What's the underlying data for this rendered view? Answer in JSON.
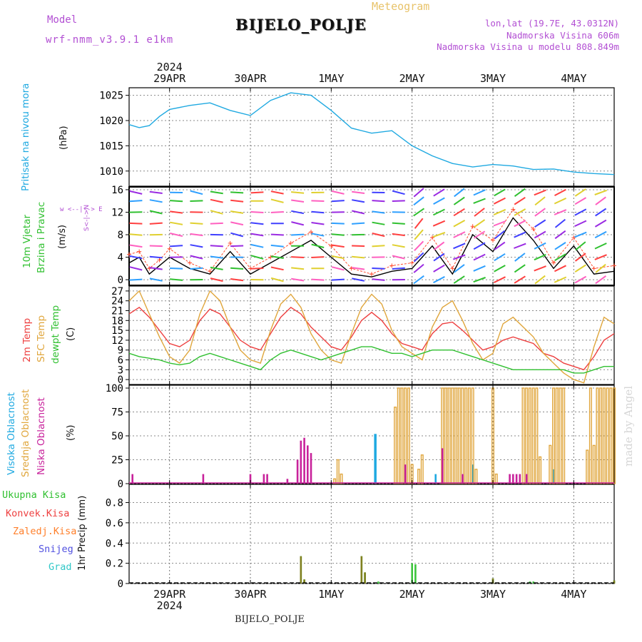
{
  "header": {
    "model_label": "Model",
    "model_name": "wrf-nmm_v3.9.1 e1km",
    "title": "BIJELO_POLJE",
    "meteogram": "Meteogram",
    "lonlat": "lon,lat (19.7E, 43.0312N)",
    "altitude": "Nadmorska Visina 606m",
    "model_altitude": "Nadmorska Visina u modelu 808.849m"
  },
  "footer": {
    "station": "BIJELO_POLJE"
  },
  "watermark": "made by Angel",
  "colors": {
    "pressure": "#1fa9e1",
    "temp2m": "#ee4040",
    "sfc": "#e0a63c",
    "dewpt": "#30c030",
    "high_cloud": "#1fa9e1",
    "mid_cloud": "#e0a63c",
    "low_cloud": "#c8229b",
    "total_precip": "#3cc43c",
    "conv_precip": "#ee4040",
    "frozen": "#ff7f2a",
    "snow": "#5050e0",
    "hail": "#31c8c8",
    "wind_speed": "#000000",
    "gust": "#ff4d30"
  },
  "axes": {
    "top_year": "2024",
    "bottom_year": "2024",
    "dates": [
      "29APR",
      "30APR",
      "1MAY",
      "2MAY",
      "3MAY",
      "4MAY"
    ]
  },
  "panel_labels": {
    "pressure": "Pritisak na nivou mora",
    "pressure_unit": "(hPa)",
    "wind1": "10m Vjetar",
    "wind2": "Brzina i Pravac",
    "wind_unit": "(m/s)",
    "compass": "w <--|--> E",
    "compass_s": "S<-|->N",
    "temp1": "2m Temp",
    "temp2": "SFC Temp",
    "temp3": "dewpt Temp",
    "temp_unit": "(C)",
    "cloud1": "Visoka Oblacnost",
    "cloud2": "Srednja Oblacnost",
    "cloud3": "Niska Oblacnost",
    "cloud_unit": "(%)",
    "precip_unit": "1hr Precip (mm)"
  },
  "precip_legend": [
    "Ukupna Kisa",
    "Konvek.Kisa",
    "Zaledj.Kisa",
    "Snijeg",
    "Grad"
  ],
  "chart_data": [
    {
      "type": "line",
      "title": "Pritisak na nivou mora",
      "ylabel": "(hPa)",
      "ylim": [
        1007,
        1026.5
      ],
      "yticks": [
        1010,
        1015,
        1020,
        1025
      ],
      "grid": true,
      "series": [
        {
          "name": "Pritisak na nivou mora",
          "x": [
            0,
            3,
            6,
            9,
            12,
            18,
            24,
            30,
            36,
            42,
            48,
            54,
            60,
            66,
            72,
            78,
            84,
            90,
            96,
            102,
            108,
            114,
            120,
            126,
            132,
            138,
            144
          ],
          "y": [
            1019.2,
            1018.6,
            1019.0,
            1020.8,
            1022.2,
            1023.0,
            1023.5,
            1022.0,
            1021.0,
            1024.0,
            1025.5,
            1025.0,
            1022.0,
            1018.5,
            1017.5,
            1018.0,
            1015.0,
            1013.0,
            1011.5,
            1010.8,
            1011.3,
            1011.0,
            1010.3,
            1010.4,
            1009.8,
            1009.5,
            1009.3
          ]
        }
      ]
    },
    {
      "type": "line",
      "title": "10m Vjetar Brzina i Pravac",
      "ylabel": "(m/s)",
      "ylim": [
        -1,
        16.5
      ],
      "yticks": [
        0,
        4,
        8,
        12,
        16
      ],
      "grid": true,
      "series": [
        {
          "name": "Brzina",
          "x": [
            0,
            3,
            6,
            9,
            12,
            18,
            24,
            30,
            36,
            42,
            48,
            54,
            60,
            66,
            72,
            78,
            84,
            90,
            96,
            102,
            108,
            114,
            120,
            126,
            132,
            138,
            144
          ],
          "y": [
            3.0,
            4.0,
            1.0,
            2.5,
            4.0,
            2.0,
            1.0,
            5.0,
            1.0,
            3.0,
            5.0,
            7.0,
            4.0,
            1.0,
            0.5,
            1.5,
            2.0,
            6.0,
            1.0,
            8.0,
            5.0,
            11.0,
            7.0,
            2.0,
            6.0,
            1.0,
            1.5
          ]
        },
        {
          "name": "Udar",
          "x": [
            0,
            3,
            6,
            9,
            12,
            18,
            24,
            30,
            36,
            42,
            48,
            54,
            60,
            66,
            72,
            78,
            84,
            90,
            96,
            102,
            108,
            114,
            120,
            126,
            132,
            138,
            144
          ],
          "y": [
            4.5,
            5.0,
            2.0,
            3.5,
            5.5,
            3.0,
            1.5,
            6.5,
            2.0,
            4.0,
            6.5,
            8.5,
            6.0,
            2.0,
            1.0,
            2.5,
            3.0,
            7.5,
            2.0,
            9.5,
            7.0,
            12.5,
            9.0,
            3.0,
            7.5,
            2.0,
            2.5
          ]
        }
      ]
    },
    {
      "type": "line",
      "title": "2m Temp / SFC Temp / dewpt Temp",
      "ylabel": "(C)",
      "ylim": [
        -1.5,
        28.5
      ],
      "yticks": [
        0,
        3,
        6,
        9,
        12,
        15,
        18,
        21,
        24,
        27
      ],
      "grid": true,
      "series": [
        {
          "name": "2m Temp",
          "x": [
            0,
            3,
            6,
            9,
            12,
            15,
            18,
            21,
            24,
            27,
            30,
            33,
            36,
            39,
            42,
            45,
            48,
            51,
            54,
            57,
            60,
            63,
            66,
            69,
            72,
            75,
            78,
            81,
            84,
            87,
            90,
            93,
            96,
            99,
            102,
            105,
            108,
            111,
            114,
            117,
            120,
            123,
            126,
            129,
            132,
            135,
            138,
            141,
            144
          ],
          "y": [
            20,
            22,
            19,
            15,
            11,
            10,
            12,
            18,
            21.5,
            20,
            16,
            12,
            10,
            9,
            14,
            19,
            22,
            20,
            16,
            13,
            10,
            9,
            13,
            18,
            20.5,
            18,
            14,
            11,
            10,
            9,
            14,
            17,
            17.5,
            15,
            12,
            9,
            10,
            12,
            13,
            12,
            11,
            8,
            7,
            5,
            4,
            3,
            7,
            12,
            14
          ]
        },
        {
          "name": "SFC Temp",
          "x": [
            0,
            3,
            6,
            9,
            12,
            15,
            18,
            21,
            24,
            27,
            30,
            33,
            36,
            39,
            42,
            45,
            48,
            51,
            54,
            57,
            60,
            63,
            66,
            69,
            72,
            75,
            78,
            81,
            84,
            87,
            90,
            93,
            96,
            99,
            102,
            105,
            108,
            111,
            114,
            117,
            120,
            123,
            126,
            129,
            132,
            135,
            138,
            141,
            144
          ],
          "y": [
            24,
            27,
            20,
            13,
            7,
            5,
            9,
            20,
            27,
            24,
            16,
            9,
            6,
            5,
            15,
            23,
            26,
            22,
            14,
            9,
            6,
            5,
            14,
            22,
            26,
            23,
            15,
            10,
            8,
            6,
            16,
            22,
            24,
            18,
            11,
            6,
            8,
            17,
            19,
            16,
            13,
            8,
            5,
            2,
            0,
            -1,
            10,
            19,
            17
          ]
        },
        {
          "name": "dewpt Temp",
          "x": [
            0,
            3,
            6,
            9,
            12,
            15,
            18,
            21,
            24,
            27,
            30,
            33,
            36,
            39,
            42,
            45,
            48,
            51,
            54,
            57,
            60,
            63,
            66,
            69,
            72,
            75,
            78,
            81,
            84,
            87,
            90,
            93,
            96,
            99,
            102,
            105,
            108,
            111,
            114,
            117,
            120,
            123,
            126,
            129,
            132,
            135,
            138,
            141,
            144
          ],
          "y": [
            8,
            7,
            6.5,
            6,
            5,
            4.5,
            5,
            7,
            8,
            7,
            6,
            5,
            4,
            3,
            6,
            8,
            9,
            8,
            7,
            6,
            7,
            8,
            9,
            10,
            10,
            9,
            8,
            8,
            7,
            8,
            9,
            9,
            9,
            8,
            7,
            6,
            5,
            4,
            3,
            3,
            3,
            3,
            3,
            3,
            2,
            2,
            3,
            4,
            4
          ]
        }
      ]
    },
    {
      "type": "bar",
      "title": "Oblacnost",
      "ylabel": "(%)",
      "ylim": [
        0,
        103
      ],
      "yticks": [
        0,
        25,
        50,
        75,
        100
      ],
      "grid": true,
      "series": [
        {
          "name": "Visoka Oblacnost",
          "x": [
            73,
            91,
            102,
            126
          ],
          "y": [
            52,
            10,
            20,
            15
          ]
        },
        {
          "name": "Srednja Oblacnost",
          "x": [
            61,
            62,
            63,
            79,
            80,
            81,
            82,
            83,
            84,
            86,
            87,
            93,
            94,
            95,
            96,
            97,
            98,
            99,
            100,
            101,
            102,
            103,
            108,
            109,
            117,
            118,
            119,
            120,
            121,
            122,
            125,
            126,
            127,
            128,
            129,
            136,
            137,
            138,
            139,
            140,
            141,
            142,
            143,
            144
          ],
          "y": [
            5,
            25,
            10,
            80,
            100,
            100,
            100,
            100,
            20,
            15,
            30,
            100,
            100,
            100,
            100,
            100,
            100,
            100,
            100,
            100,
            100,
            15,
            100,
            10,
            100,
            100,
            100,
            100,
            100,
            28,
            40,
            100,
            100,
            100,
            100,
            35,
            100,
            40,
            100,
            100,
            100,
            100,
            100,
            100
          ]
        },
        {
          "name": "Niska Oblacnost",
          "x": [
            1,
            22,
            36,
            40,
            41,
            47,
            50,
            51,
            52,
            53,
            54,
            82,
            93,
            99,
            113,
            114,
            115,
            116,
            118
          ],
          "y": [
            10,
            10,
            10,
            10,
            10,
            5,
            25,
            45,
            48,
            40,
            32,
            20,
            37,
            10,
            10,
            10,
            10,
            10,
            10
          ]
        }
      ]
    },
    {
      "type": "bar",
      "title": "1hr Precip",
      "ylabel": "1hr Precip (mm)",
      "ylim": [
        0,
        0.98
      ],
      "yticks": [
        0,
        0.2,
        0.4,
        0.6,
        0.8
      ],
      "grid": true,
      "series": [
        {
          "name": "Ukupna Kisa",
          "x": [
            51,
            52,
            69,
            70,
            74,
            84,
            85,
            108,
            119,
            120,
            144
          ],
          "y": [
            0.27,
            0.04,
            0.27,
            0.11,
            0.02,
            0.2,
            0.19,
            0.05,
            0.02,
            0.02,
            0.03
          ]
        },
        {
          "name": "Konvek.Kisa",
          "x": [
            51,
            52,
            69,
            70,
            108,
            144
          ],
          "y": [
            0.27,
            0.04,
            0.27,
            0.11,
            0.05,
            0.03
          ]
        },
        {
          "name": "Zaledj.Kisa",
          "x": [],
          "y": []
        },
        {
          "name": "Snijeg",
          "x": [],
          "y": []
        },
        {
          "name": "Grad",
          "x": [],
          "y": []
        }
      ]
    }
  ]
}
